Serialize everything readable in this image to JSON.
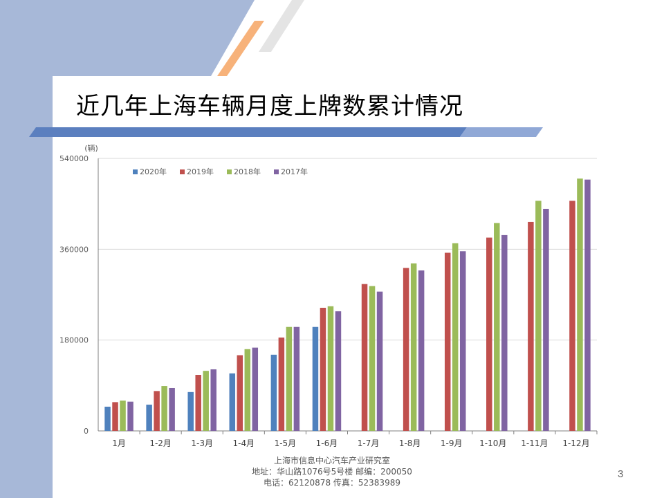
{
  "slide": {
    "title": "近几年上海车辆月度上牌数累计情况",
    "footer": {
      "line1": "上海市信息中心汽车产业研究室",
      "line2": "地址：华山路1076号5号楼    邮编：200050",
      "line3": "电话：62120878  传真：52383989"
    },
    "page_number": "3",
    "colors": {
      "sidebar": "#a7b8d8",
      "band_dark": "#5b7fbf",
      "band_light": "#90a8d6",
      "stripe_orange": "#f7b27a",
      "stripe_gray": "#e4e4e4"
    }
  },
  "chart_data": {
    "type": "bar",
    "unit_label": "(辆)",
    "categories": [
      "1月",
      "1-2月",
      "1-3月",
      "1-4月",
      "1-5月",
      "1-6月",
      "1-7月",
      "1-8月",
      "1-9月",
      "1-10月",
      "1-11月",
      "1-12月"
    ],
    "series": [
      {
        "name": "2020年",
        "color": "#4f81bd",
        "values": [
          48000,
          52000,
          77000,
          114000,
          151000,
          206000,
          null,
          null,
          null,
          null,
          null,
          null
        ]
      },
      {
        "name": "2019年",
        "color": "#c0504d",
        "values": [
          57000,
          79000,
          111000,
          150000,
          185000,
          244000,
          291000,
          323000,
          353000,
          383000,
          414000,
          456000
        ]
      },
      {
        "name": "2018年",
        "color": "#9bbb59",
        "values": [
          60000,
          89000,
          119000,
          162000,
          206000,
          247000,
          287000,
          332000,
          372000,
          412000,
          456000,
          500000
        ]
      },
      {
        "name": "2017年",
        "color": "#8064a2",
        "values": [
          58000,
          85000,
          122000,
          165000,
          206000,
          237000,
          276000,
          318000,
          356000,
          388000,
          440000,
          498000
        ]
      }
    ],
    "yticks": [
      0,
      180000,
      360000,
      540000
    ],
    "ylim": [
      0,
      540000
    ],
    "grid": true,
    "legend_position": "top-left"
  }
}
